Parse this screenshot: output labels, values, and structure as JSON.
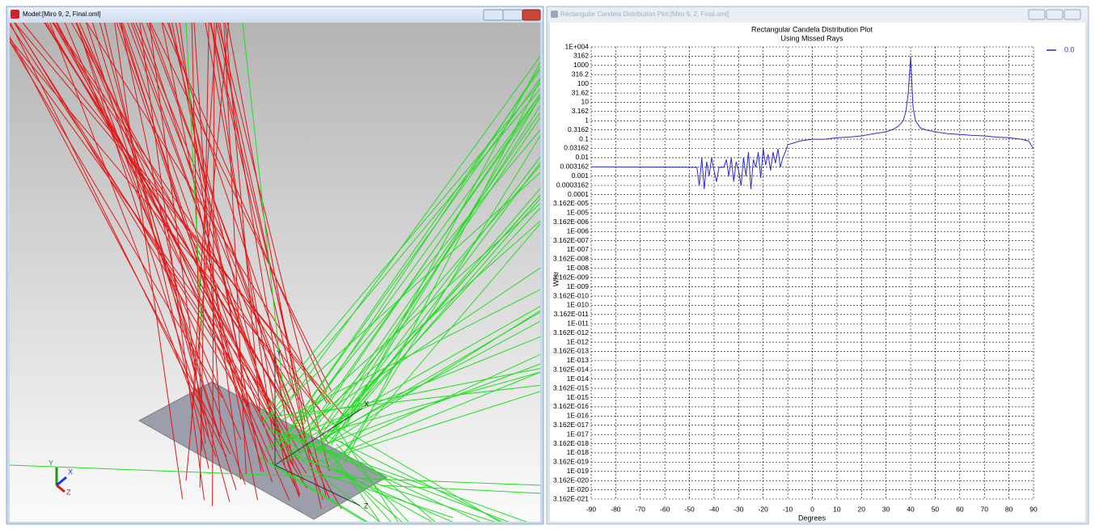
{
  "model_window": {
    "title": "Model:[Miro 9, 2, Final.oml]",
    "axis_labels": [
      "Y",
      "X",
      "Z"
    ],
    "triad_labels": [
      "Y",
      "X",
      "Z"
    ]
  },
  "plot_window": {
    "title": "Rectangular Candela Distribution Plot:[Miro 9, 2, Final.oml]"
  },
  "chart_data": {
    "type": "line",
    "title": "Rectangular Candela Distribution Plot",
    "subtitle": "Using Missed Rays",
    "x_label": "Degrees",
    "y_label": "W/sr",
    "log_y": true,
    "grid": true,
    "legend": "top-right",
    "xlim": [
      -90,
      90
    ],
    "xticks": [
      -90,
      -80,
      -70,
      -60,
      -50,
      -40,
      -30,
      -20,
      -10,
      0,
      10,
      20,
      30,
      40,
      50,
      60,
      70,
      80,
      90
    ],
    "ylim": [
      3.162e-21,
      10000
    ],
    "yticks": [
      {
        "value": 3.162e-21,
        "label": "3.162E-021"
      },
      {
        "value": 1e-20,
        "label": "1E-020"
      },
      {
        "value": 3.162e-20,
        "label": "3.162E-020"
      },
      {
        "value": 1e-19,
        "label": "1E-019"
      },
      {
        "value": 3.162e-19,
        "label": "3.162E-019"
      },
      {
        "value": 1e-18,
        "label": "1E-018"
      },
      {
        "value": 3.162e-18,
        "label": "3.162E-018"
      },
      {
        "value": 1e-17,
        "label": "1E-017"
      },
      {
        "value": 3.162e-17,
        "label": "3.162E-017"
      },
      {
        "value": 1e-16,
        "label": "1E-016"
      },
      {
        "value": 3.162e-16,
        "label": "3.162E-016"
      },
      {
        "value": 1e-15,
        "label": "1E-015"
      },
      {
        "value": 3.162e-15,
        "label": "3.162E-015"
      },
      {
        "value": 1e-14,
        "label": "1E-014"
      },
      {
        "value": 3.162e-14,
        "label": "3.162E-014"
      },
      {
        "value": 1e-13,
        "label": "1E-013"
      },
      {
        "value": 3.162e-13,
        "label": "3.162E-013"
      },
      {
        "value": 1e-12,
        "label": "1E-012"
      },
      {
        "value": 3.162e-12,
        "label": "3.162E-012"
      },
      {
        "value": 1e-11,
        "label": "1E-011"
      },
      {
        "value": 3.162e-11,
        "label": "3.162E-011"
      },
      {
        "value": 1e-10,
        "label": "1E-010"
      },
      {
        "value": 3.162e-10,
        "label": "3.162E-010"
      },
      {
        "value": 1e-09,
        "label": "1E-009"
      },
      {
        "value": 3.162e-09,
        "label": "3.162E-009"
      },
      {
        "value": 1e-08,
        "label": "1E-008"
      },
      {
        "value": 3.162e-08,
        "label": "3.162E-008"
      },
      {
        "value": 1e-07,
        "label": "1E-007"
      },
      {
        "value": 3.162e-07,
        "label": "3.162E-007"
      },
      {
        "value": 1e-06,
        "label": "1E-006"
      },
      {
        "value": 3.162e-06,
        "label": "3.162E-006"
      },
      {
        "value": 1e-05,
        "label": "1E-005"
      },
      {
        "value": 3.162e-05,
        "label": "3.162E-005"
      },
      0.0001,
      0.0003162,
      0.001,
      0.003162,
      0.01,
      0.03162,
      0.1,
      0.3162,
      1,
      3.162,
      10,
      31.62,
      100,
      316.2,
      1000,
      3162,
      {
        "value": 10000,
        "label": "1E+004"
      }
    ],
    "x": [
      -90,
      -47,
      -46,
      -45,
      -44,
      -43,
      -42,
      -41,
      -40,
      -39,
      -38,
      -37,
      -36,
      -35,
      -34,
      -33,
      -32,
      -31,
      -30,
      -29,
      -28,
      -27,
      -26,
      -25,
      -24,
      -23,
      -22,
      -21,
      -20,
      -19,
      -18,
      -17,
      -16,
      -15,
      -14,
      -13,
      -12,
      -11,
      -10,
      -8,
      -5,
      0,
      5,
      10,
      15,
      20,
      25,
      30,
      33,
      35,
      37,
      38,
      39,
      39.5,
      40,
      40.5,
      41,
      42,
      44,
      47,
      50,
      55,
      60,
      65,
      70,
      75,
      80,
      85,
      88,
      90
    ],
    "series": [
      {
        "name": "0.0",
        "color": "#2b2bd4",
        "values": [
          0.003162,
          0.003,
          0.0003,
          0.01,
          0.0002,
          0.006,
          0.001,
          0.01,
          0.002,
          0.0005,
          0.003,
          0.003,
          0.003,
          0.008,
          0.001,
          0.01,
          0.0005,
          0.006,
          0.002,
          0.0003,
          0.01,
          0.001,
          0.02,
          0.0002,
          0.008,
          0.003,
          0.02,
          0.0008,
          0.03,
          0.004,
          0.015,
          0.002,
          0.02,
          0.005,
          0.03,
          0.003,
          0.01,
          0.02,
          0.05,
          0.06,
          0.08,
          0.1,
          0.1,
          0.12,
          0.13,
          0.15,
          0.2,
          0.25,
          0.35,
          0.5,
          1,
          3,
          30,
          300,
          3162,
          100,
          5,
          1,
          0.4,
          0.3,
          0.25,
          0.2,
          0.18,
          0.16,
          0.15,
          0.13,
          0.12,
          0.1,
          0.08,
          0.03
        ]
      }
    ]
  }
}
